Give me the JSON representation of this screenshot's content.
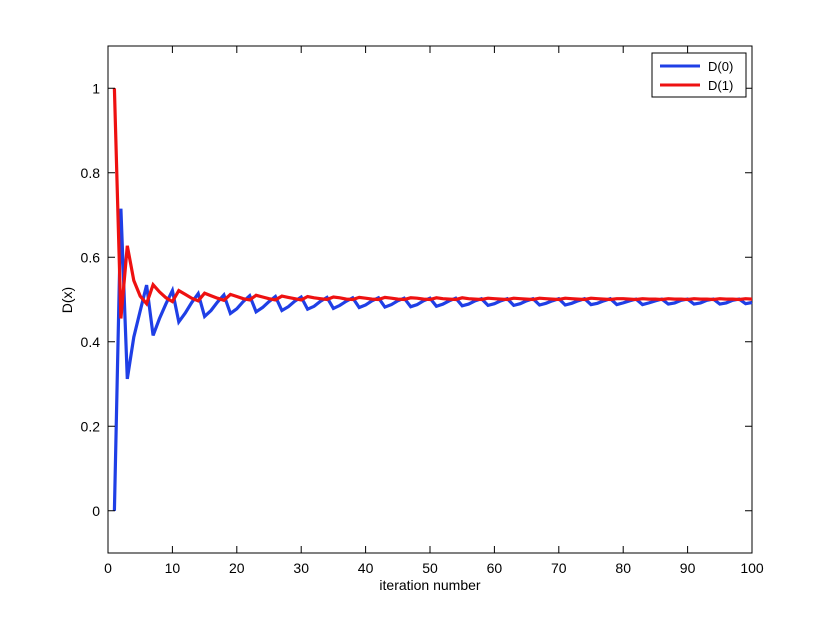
{
  "chart_data": {
    "type": "line",
    "title": "",
    "xlabel": "iteration number",
    "ylabel": "D(x)",
    "xlim": [
      0,
      100
    ],
    "ylim": [
      -0.1,
      1.1
    ],
    "xticks": [
      0,
      10,
      20,
      30,
      40,
      50,
      60,
      70,
      80,
      90,
      100
    ],
    "yticks": [
      0,
      0.2,
      0.4,
      0.6,
      0.8,
      1
    ],
    "xtick_labels": [
      "0",
      "10",
      "20",
      "30",
      "40",
      "50",
      "60",
      "70",
      "80",
      "90",
      "100"
    ],
    "ytick_labels": [
      "0",
      "0.2",
      "0.4",
      "0.6",
      "0.8",
      "1"
    ],
    "grid": false,
    "legend_position": "top-right",
    "series": [
      {
        "name": "D(0)",
        "color": "#1f3fe6",
        "x": [
          1,
          2,
          3,
          4,
          5,
          6,
          7,
          8,
          9,
          10,
          11,
          12,
          13,
          14,
          15,
          16,
          17,
          18,
          19,
          20,
          21,
          22,
          23,
          24,
          25,
          26,
          27,
          28,
          29,
          30,
          31,
          32,
          33,
          34,
          35,
          36,
          37,
          38,
          39,
          40,
          41,
          42,
          43,
          44,
          45,
          46,
          47,
          48,
          49,
          50,
          51,
          52,
          53,
          54,
          55,
          56,
          57,
          58,
          59,
          60,
          61,
          62,
          63,
          64,
          65,
          66,
          67,
          68,
          69,
          70,
          71,
          72,
          73,
          74,
          75,
          76,
          77,
          78,
          79,
          80,
          81,
          82,
          83,
          84,
          85,
          86,
          87,
          88,
          89,
          90,
          91,
          92,
          93,
          94,
          95,
          96,
          97,
          98,
          99,
          100
        ],
        "y": [
          0.0,
          0.715,
          0.312,
          0.411,
          0.473,
          0.534,
          0.415,
          0.455,
          0.49,
          0.521,
          0.447,
          0.468,
          0.493,
          0.514,
          0.46,
          0.474,
          0.494,
          0.511,
          0.467,
          0.478,
          0.495,
          0.509,
          0.471,
          0.481,
          0.495,
          0.507,
          0.474,
          0.483,
          0.496,
          0.506,
          0.477,
          0.484,
          0.496,
          0.505,
          0.479,
          0.486,
          0.496,
          0.504,
          0.481,
          0.487,
          0.497,
          0.504,
          0.482,
          0.488,
          0.497,
          0.503,
          0.483,
          0.488,
          0.497,
          0.503,
          0.484,
          0.489,
          0.497,
          0.503,
          0.485,
          0.489,
          0.497,
          0.502,
          0.486,
          0.49,
          0.497,
          0.502,
          0.486,
          0.49,
          0.497,
          0.502,
          0.487,
          0.491,
          0.497,
          0.502,
          0.487,
          0.491,
          0.497,
          0.502,
          0.488,
          0.491,
          0.497,
          0.502,
          0.488,
          0.492,
          0.497,
          0.501,
          0.488,
          0.492,
          0.497,
          0.501,
          0.489,
          0.492,
          0.498,
          0.501,
          0.489,
          0.492,
          0.498,
          0.501,
          0.489,
          0.492,
          0.498,
          0.501,
          0.49,
          0.493
        ]
      },
      {
        "name": "D(1)",
        "color": "#ee1111",
        "x": [
          1,
          2,
          3,
          4,
          5,
          6,
          7,
          8,
          9,
          10,
          11,
          12,
          13,
          14,
          15,
          16,
          17,
          18,
          19,
          20,
          21,
          22,
          23,
          24,
          25,
          26,
          27,
          28,
          29,
          30,
          31,
          32,
          33,
          34,
          35,
          36,
          37,
          38,
          39,
          40,
          41,
          42,
          43,
          44,
          45,
          46,
          47,
          48,
          49,
          50,
          51,
          52,
          53,
          54,
          55,
          56,
          57,
          58,
          59,
          60,
          61,
          62,
          63,
          64,
          65,
          66,
          67,
          68,
          69,
          70,
          71,
          72,
          73,
          74,
          75,
          76,
          77,
          78,
          79,
          80,
          81,
          82,
          83,
          84,
          85,
          86,
          87,
          88,
          89,
          90,
          91,
          92,
          93,
          94,
          95,
          96,
          97,
          98,
          99,
          100
        ],
        "y": [
          1.0,
          0.455,
          0.627,
          0.545,
          0.508,
          0.49,
          0.535,
          0.518,
          0.504,
          0.495,
          0.521,
          0.512,
          0.503,
          0.497,
          0.515,
          0.509,
          0.503,
          0.498,
          0.512,
          0.507,
          0.502,
          0.499,
          0.51,
          0.506,
          0.502,
          0.499,
          0.508,
          0.505,
          0.502,
          0.499,
          0.507,
          0.504,
          0.502,
          0.5,
          0.506,
          0.504,
          0.501,
          0.5,
          0.505,
          0.503,
          0.501,
          0.5,
          0.505,
          0.503,
          0.501,
          0.5,
          0.504,
          0.503,
          0.501,
          0.5,
          0.504,
          0.502,
          0.501,
          0.5,
          0.504,
          0.502,
          0.501,
          0.5,
          0.503,
          0.502,
          0.501,
          0.5,
          0.503,
          0.502,
          0.501,
          0.5,
          0.503,
          0.502,
          0.501,
          0.5,
          0.503,
          0.502,
          0.501,
          0.5,
          0.503,
          0.502,
          0.501,
          0.5,
          0.502,
          0.502,
          0.501,
          0.5,
          0.502,
          0.501,
          0.501,
          0.5,
          0.502,
          0.501,
          0.501,
          0.5,
          0.502,
          0.501,
          0.501,
          0.5,
          0.502,
          0.501,
          0.501,
          0.5,
          0.502,
          0.501
        ]
      }
    ]
  }
}
